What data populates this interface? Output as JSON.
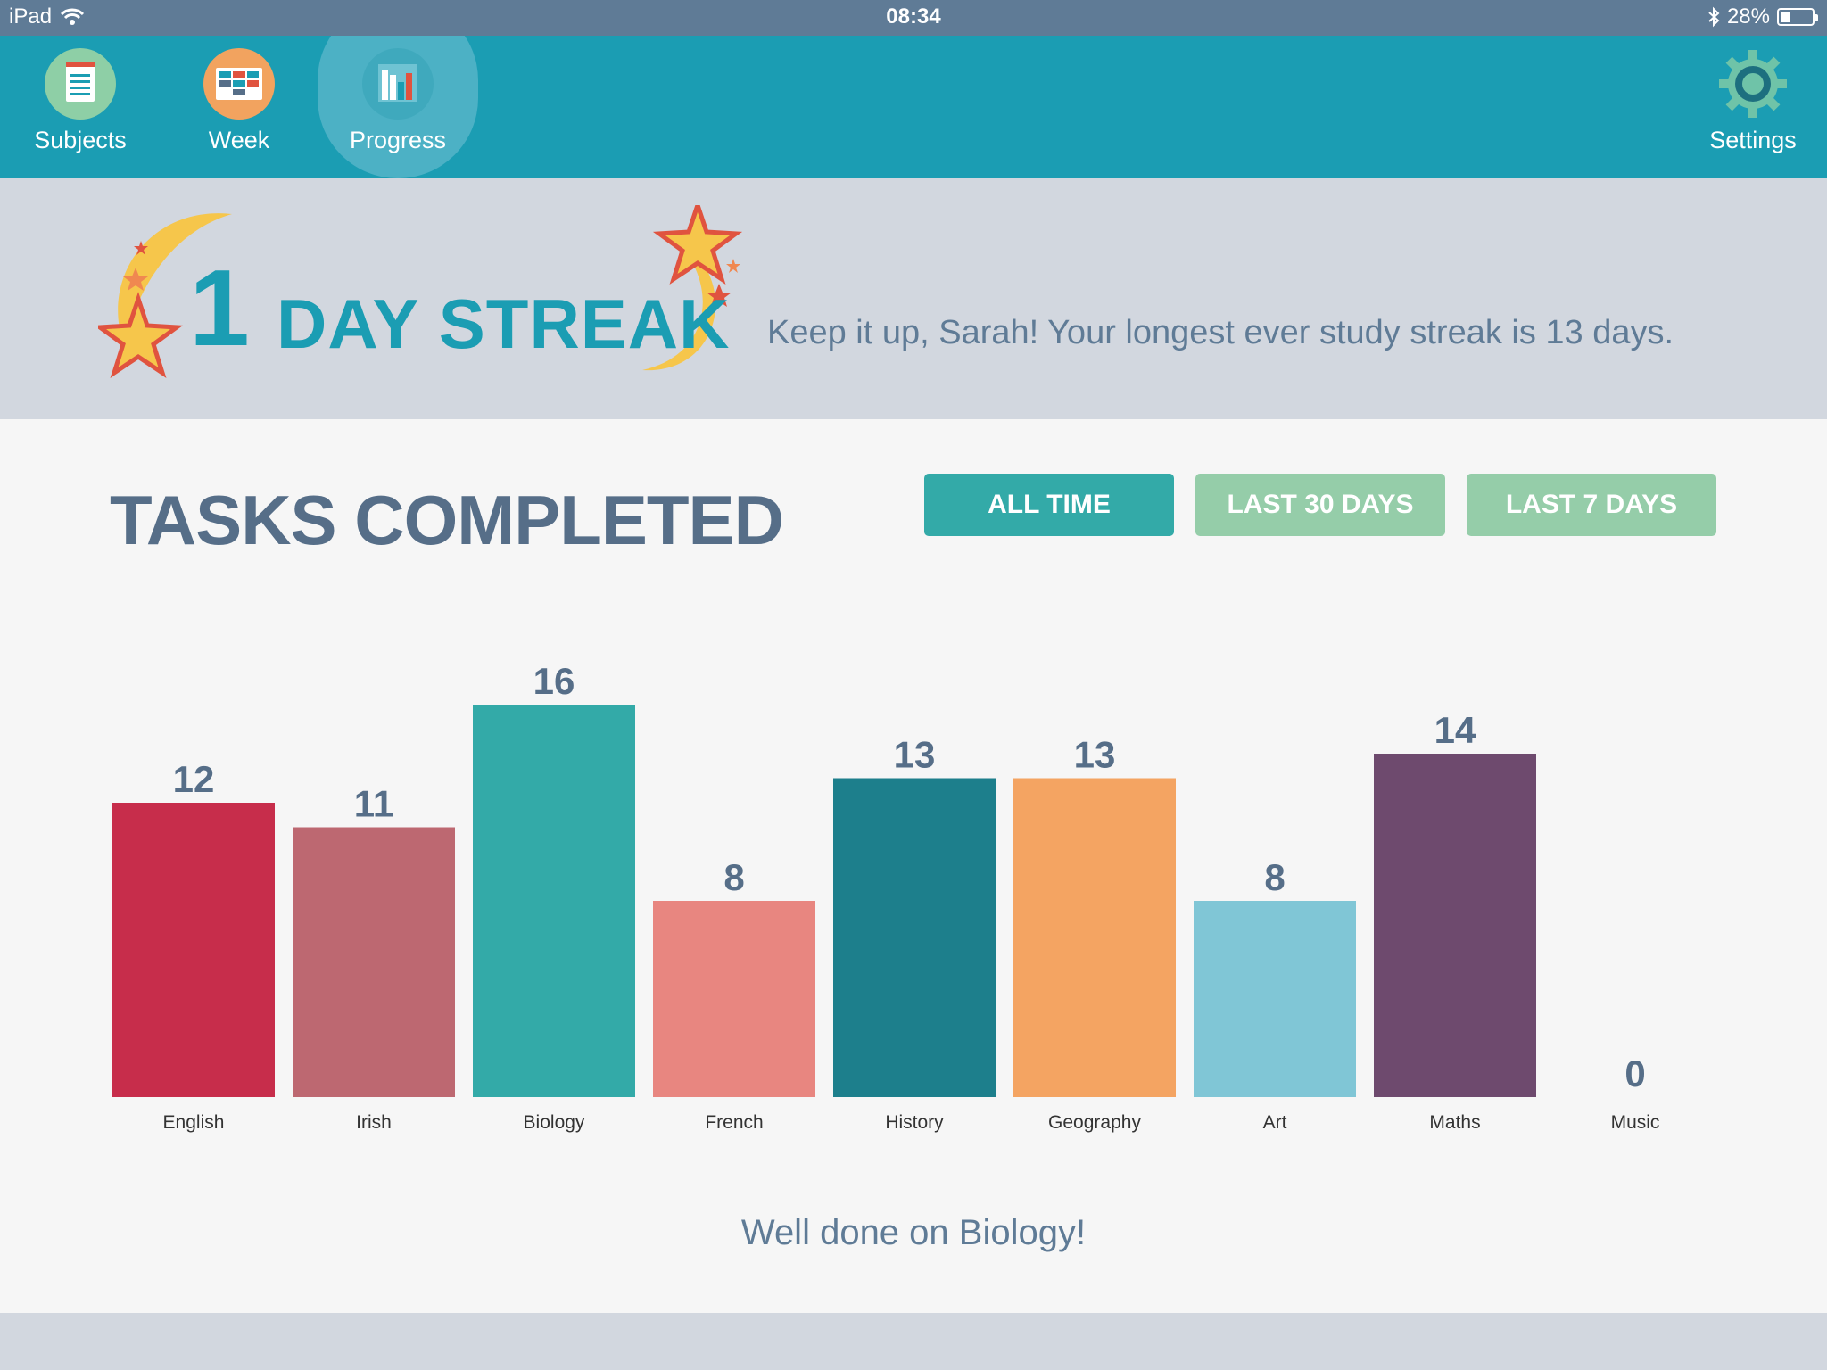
{
  "status_bar": {
    "device": "iPad",
    "time": "08:34",
    "battery": "28%",
    "battery_level": 0.28
  },
  "nav": {
    "items": [
      {
        "label": "Subjects",
        "icon": "notepad-icon",
        "color": "#8ecfa6"
      },
      {
        "label": "Week",
        "icon": "calendar-grid-icon",
        "color": "#f2a35f"
      },
      {
        "label": "Progress",
        "icon": "bar-chart-icon",
        "color": "#1b9db3",
        "active": true
      }
    ],
    "settings": {
      "label": "Settings",
      "icon": "gear-icon"
    }
  },
  "streak": {
    "number": "1",
    "label": "DAY STREAK",
    "message": "Keep it up, Sarah! Your longest ever study streak is 13 days."
  },
  "tasks": {
    "title": "TASKS COMPLETED",
    "filters": [
      {
        "label": "ALL TIME",
        "active": true
      },
      {
        "label": "LAST 30 DAYS",
        "active": false
      },
      {
        "label": "LAST 7 DAYS",
        "active": false
      }
    ],
    "footer_message": "Well done on Biology!"
  },
  "colors": {
    "teal": "#1b9db3",
    "filter_active": "#33aaa8",
    "filter_inactive": "#95cda9",
    "label_slate": "#566e88"
  },
  "chart_data": {
    "type": "bar",
    "categories": [
      "English",
      "Irish",
      "Biology",
      "French",
      "History",
      "Geography",
      "Art",
      "Maths",
      "Music"
    ],
    "values": [
      12,
      11,
      16,
      8,
      13,
      13,
      8,
      14,
      0
    ],
    "colors": [
      "#c72d4b",
      "#bd6871",
      "#33aaa8",
      "#e88680",
      "#1d7f8c",
      "#f4a462",
      "#80c6d6",
      "#6e4a6e",
      "#cccccc"
    ],
    "ylim": [
      0,
      16
    ],
    "grid": false
  }
}
